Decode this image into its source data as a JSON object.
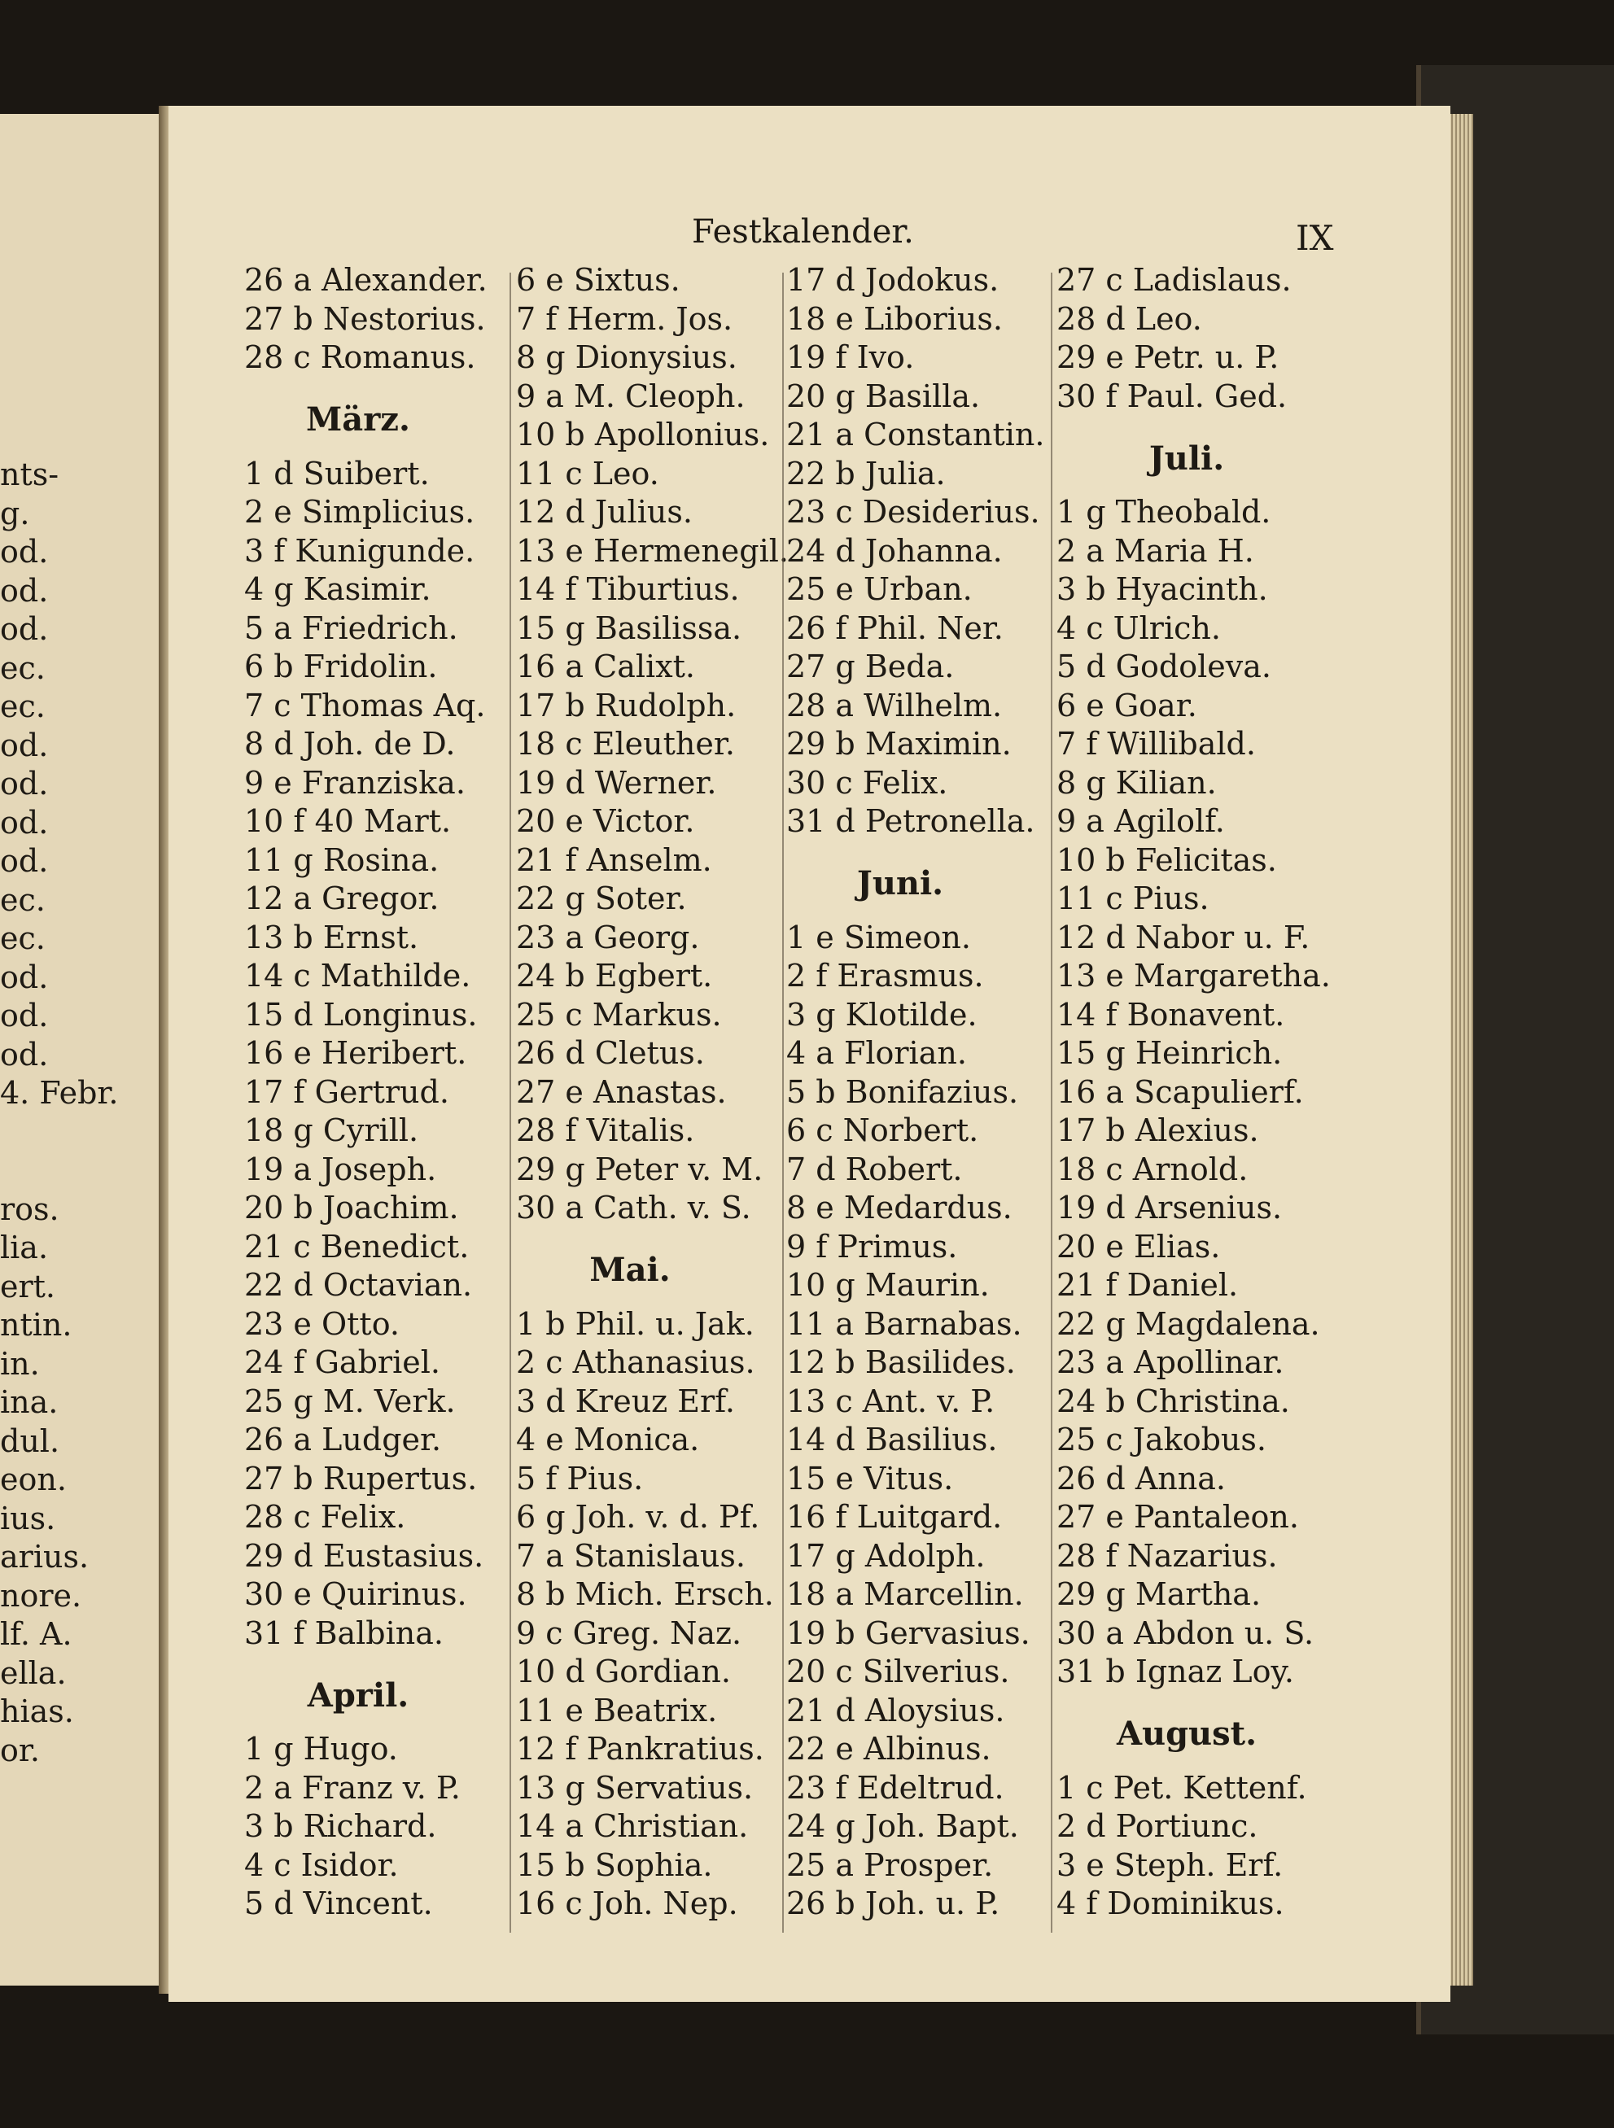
{
  "header": {
    "title": "Festkalender.",
    "page": "IX"
  },
  "left_page": {
    "fragments": [
      "nts-",
      "g.",
      "od.",
      "od.",
      "od.",
      "ec.",
      "ec.",
      "od.",
      "od.",
      "od.",
      "od.",
      "ec.",
      "ec.",
      "od.",
      "od.",
      "od.",
      "4. Febr.",
      "",
      "",
      "ros.",
      "lia.",
      "ert.",
      "ntin.",
      "in.",
      "ina.",
      "dul.",
      "eon.",
      "ius.",
      "arius.",
      "nore.",
      "lf. A.",
      "ella.",
      "hias.",
      "or."
    ]
  },
  "columns": [
    {
      "blocks": [
        {
          "entries": [
            "26 a Alexander.",
            "27 b Nestorius.",
            "28 c Romanus."
          ]
        },
        {
          "month": "März.",
          "entries": [
            "1 d Suibert.",
            "2 e Simplicius.",
            "3 f Kunigunde.",
            "4 g Kasimir.",
            "5 a Friedrich.",
            "6 b Fridolin.",
            "7 c Thomas Aq.",
            "8 d Joh. de D.",
            "9 e Franziska.",
            "10 f 40 Mart.",
            "11 g Rosina.",
            "12 a Gregor.",
            "13 b Ernst.",
            "14 c Mathilde.",
            "15 d Longinus.",
            "16 e Heribert.",
            "17 f Gertrud.",
            "18 g Cyrill.",
            "19 a Joseph.",
            "20 b Joachim.",
            "21 c Benedict.",
            "22 d Octavian.",
            "23 e Otto.",
            "24 f Gabriel.",
            "25 g M. Verk.",
            "26 a Ludger.",
            "27 b Rupertus.",
            "28 c Felix.",
            "29 d Eustasius.",
            "30 e Quirinus.",
            "31 f Balbina."
          ]
        },
        {
          "month": "April.",
          "entries": [
            "1 g Hugo.",
            "2 a Franz v. P.",
            "3 b Richard.",
            "4 c Isidor.",
            "5 d Vincent."
          ]
        }
      ]
    },
    {
      "blocks": [
        {
          "entries": [
            "6 e Sixtus.",
            "7 f Herm. Jos.",
            "8 g Dionysius.",
            "9 a M. Cleoph.",
            "10 b Apollonius.",
            "11 c Leo.",
            "12 d Julius.",
            "13 e Hermenegil.",
            "14 f Tiburtius.",
            "15 g Basilissa.",
            "16 a Calixt.",
            "17 b Rudolph.",
            "18 c Eleuther.",
            "19 d Werner.",
            "20 e Victor.",
            "21 f Anselm.",
            "22 g Soter.",
            "23 a Georg.",
            "24 b Egbert.",
            "25 c Markus.",
            "26 d Cletus.",
            "27 e Anastas.",
            "28 f Vitalis.",
            "29 g Peter v. M.",
            "30 a Cath. v. S."
          ]
        },
        {
          "month": "Mai.",
          "entries": [
            "1 b Phil. u. Jak.",
            "2 c Athanasius.",
            "3 d Kreuz Erf.",
            "4 e Monica.",
            "5 f Pius.",
            "6 g Joh. v. d. Pf.",
            "7 a Stanislaus.",
            "8 b Mich. Ersch.",
            "9 c Greg. Naz.",
            "10 d Gordian.",
            "11 e Beatrix.",
            "12 f Pankratius.",
            "13 g Servatius.",
            "14 a Christian.",
            "15 b Sophia.",
            "16 c Joh. Nep."
          ]
        }
      ]
    },
    {
      "blocks": [
        {
          "entries": [
            "17 d Jodokus.",
            "18 e Liborius.",
            "19 f Ivo.",
            "20 g Basilla.",
            "21 a Constantin.",
            "22 b Julia.",
            "23 c Desiderius.",
            "24 d Johanna.",
            "25 e Urban.",
            "26 f Phil. Ner.",
            "27 g Beda.",
            "28 a Wilhelm.",
            "29 b Maximin.",
            "30 c Felix.",
            "31 d Petronella."
          ]
        },
        {
          "month": "Juni.",
          "entries": [
            "1 e Simeon.",
            "2 f Erasmus.",
            "3 g Klotilde.",
            "4 a Florian.",
            "5 b Bonifazius.",
            "6 c Norbert.",
            "7 d Robert.",
            "8 e Medardus.",
            "9 f Primus.",
            "10 g Maurin.",
            "11 a Barnabas.",
            "12 b Basilides.",
            "13 c Ant. v. P.",
            "14 d Basilius.",
            "15 e Vitus.",
            "16 f Luitgard.",
            "17 g Adolph.",
            "18 a Marcellin.",
            "19 b Gervasius.",
            "20 c Silverius.",
            "21 d Aloysius.",
            "22 e Albinus.",
            "23 f Edeltrud.",
            "24 g Joh. Bapt.",
            "25 a Prosper.",
            "26 b Joh. u. P."
          ]
        }
      ]
    },
    {
      "blocks": [
        {
          "entries": [
            "27 c Ladislaus.",
            "28 d Leo.",
            "29 e Petr. u. P.",
            "30 f Paul. Ged."
          ]
        },
        {
          "month": "Juli.",
          "entries": [
            "1 g Theobald.",
            "2 a Maria H.",
            "3 b Hyacinth.",
            "4 c Ulrich.",
            "5 d Godoleva.",
            "6 e Goar.",
            "7 f Willibald.",
            "8 g Kilian.",
            "9 a Agilolf.",
            "10 b Felicitas.",
            "11 c Pius.",
            "12 d Nabor u. F.",
            "13 e Margaretha.",
            "14 f Bonavent.",
            "15 g Heinrich.",
            "16 a Scapulierf.",
            "17 b Alexius.",
            "18 c Arnold.",
            "19 d Arsenius.",
            "20 e Elias.",
            "21 f Daniel.",
            "22 g Magdalena.",
            "23 a Apollinar.",
            "24 b Christina.",
            "25 c Jakobus.",
            "26 d Anna.",
            "27 e Pantaleon.",
            "28 f Nazarius.",
            "29 g Martha.",
            "30 a Abdon u. S.",
            "31 b Ignaz Loy."
          ]
        },
        {
          "month": "August.",
          "entries": [
            "1 c Pet. Kettenf.",
            "2 d Portiunc.",
            "3 e Steph. Erf.",
            "4 f Dominikus."
          ]
        }
      ]
    }
  ]
}
